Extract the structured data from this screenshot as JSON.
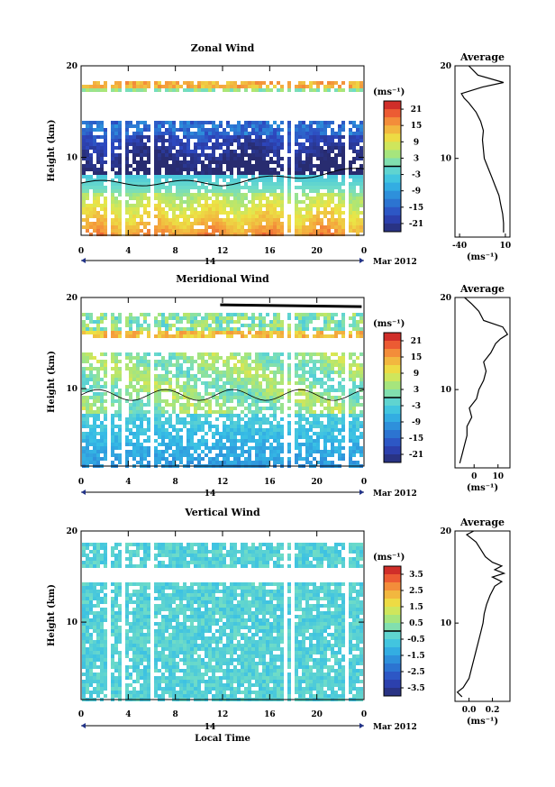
{
  "chart_data": [
    {
      "type": "heatmap",
      "title": "Zonal Wind",
      "ylabel": "Height (km)",
      "xlabel": "",
      "x_ticks": [
        "0",
        "4",
        "8",
        "12",
        "16",
        "20",
        "0"
      ],
      "y_ticks": [
        "20",
        "10"
      ],
      "xlim": [
        0,
        24
      ],
      "ylim": [
        1.5,
        20
      ],
      "date_day": "14",
      "date_month": "Mar 2012",
      "colorbar": {
        "unit": "(ms⁻¹)",
        "ticks": [
          "21",
          "15",
          "9",
          "3",
          "-3",
          "-9",
          "-15",
          "-21"
        ],
        "range": [
          -24,
          24
        ]
      },
      "profile": {
        "title": "Average",
        "xlabel": "(ms⁻¹)",
        "x_ticks": [
          "-40",
          "10"
        ],
        "y_ticks": [
          "20",
          "10"
        ],
        "xlim": [
          -45,
          15
        ],
        "points": [
          [
            8,
            2
          ],
          [
            8,
            3
          ],
          [
            7,
            4
          ],
          [
            5,
            5
          ],
          [
            3,
            6
          ],
          [
            -1,
            7
          ],
          [
            -5,
            8
          ],
          [
            -9,
            9
          ],
          [
            -13,
            10
          ],
          [
            -14,
            11
          ],
          [
            -15,
            12
          ],
          [
            -14,
            13
          ],
          [
            -17,
            14
          ],
          [
            -22,
            15
          ],
          [
            -30,
            16
          ],
          [
            -35,
            16.5
          ],
          [
            -38,
            17
          ],
          [
            -15,
            17.7
          ],
          [
            8,
            18.2
          ],
          [
            -20,
            19
          ],
          [
            -30,
            20
          ]
        ]
      }
    },
    {
      "type": "heatmap",
      "title": "Meridional Wind",
      "ylabel": "Height (km)",
      "xlabel": "",
      "x_ticks": [
        "0",
        "4",
        "8",
        "12",
        "16",
        "20",
        "0"
      ],
      "y_ticks": [
        "20",
        "10"
      ],
      "xlim": [
        0,
        24
      ],
      "ylim": [
        1.5,
        20
      ],
      "date_day": "14",
      "date_month": "Mar 2012",
      "colorbar": {
        "unit": "(ms⁻¹)",
        "ticks": [
          "21",
          "15",
          "9",
          "3",
          "-3",
          "-9",
          "-15",
          "-21"
        ],
        "range": [
          -24,
          24
        ]
      },
      "profile": {
        "title": "Average",
        "xlabel": "(ms⁻¹)",
        "x_ticks": [
          "0",
          "10"
        ],
        "y_ticks": [
          "20",
          "10"
        ],
        "xlim": [
          -8,
          15
        ],
        "points": [
          [
            -6,
            2
          ],
          [
            -5,
            3
          ],
          [
            -4,
            4
          ],
          [
            -3,
            5
          ],
          [
            -3,
            6
          ],
          [
            -1,
            7
          ],
          [
            -2,
            8
          ],
          [
            1,
            9
          ],
          [
            2,
            10
          ],
          [
            4,
            11
          ],
          [
            5,
            12
          ],
          [
            4,
            13
          ],
          [
            7,
            14
          ],
          [
            9,
            15
          ],
          [
            11,
            15.5
          ],
          [
            14,
            16
          ],
          [
            12,
            16.8
          ],
          [
            4,
            17.5
          ],
          [
            2,
            18.5
          ],
          [
            -1,
            19.3
          ],
          [
            -4,
            20
          ]
        ]
      }
    },
    {
      "type": "heatmap",
      "title": "Vertical Wind",
      "ylabel": "Height (km)",
      "xlabel": "Local Time",
      "x_ticks": [
        "0",
        "4",
        "8",
        "12",
        "16",
        "20",
        "0"
      ],
      "y_ticks": [
        "20",
        "10"
      ],
      "xlim": [
        0,
        24
      ],
      "ylim": [
        1.5,
        20
      ],
      "date_day": "14",
      "date_month": "Mar 2012",
      "colorbar": {
        "unit": "(ms⁻¹)",
        "ticks": [
          "3.5",
          "2.5",
          "1.5",
          "0.5",
          "-0.5",
          "-1.5",
          "-2.5",
          "-3.5"
        ],
        "range": [
          -4,
          4
        ]
      },
      "profile": {
        "title": "Average",
        "xlabel": "(ms⁻¹)",
        "x_ticks": [
          "0.0",
          "0.2"
        ],
        "y_ticks": [
          "20",
          "10"
        ],
        "xlim": [
          -0.12,
          0.35
        ],
        "points": [
          [
            -0.06,
            2
          ],
          [
            -0.1,
            2.5
          ],
          [
            -0.05,
            3
          ],
          [
            0.0,
            4
          ],
          [
            0.02,
            5
          ],
          [
            0.04,
            6
          ],
          [
            0.06,
            7
          ],
          [
            0.08,
            8
          ],
          [
            0.1,
            9
          ],
          [
            0.12,
            10
          ],
          [
            0.13,
            11
          ],
          [
            0.15,
            12
          ],
          [
            0.18,
            13
          ],
          [
            0.22,
            14
          ],
          [
            0.28,
            14.5
          ],
          [
            0.2,
            15
          ],
          [
            0.3,
            15.4
          ],
          [
            0.22,
            15.8
          ],
          [
            0.28,
            16.2
          ],
          [
            0.2,
            16.6
          ],
          [
            0.14,
            17.2
          ],
          [
            0.1,
            18
          ],
          [
            0.06,
            18.8
          ],
          [
            0.02,
            19.2
          ],
          [
            -0.02,
            19.6
          ],
          [
            0.04,
            20
          ]
        ]
      }
    }
  ]
}
